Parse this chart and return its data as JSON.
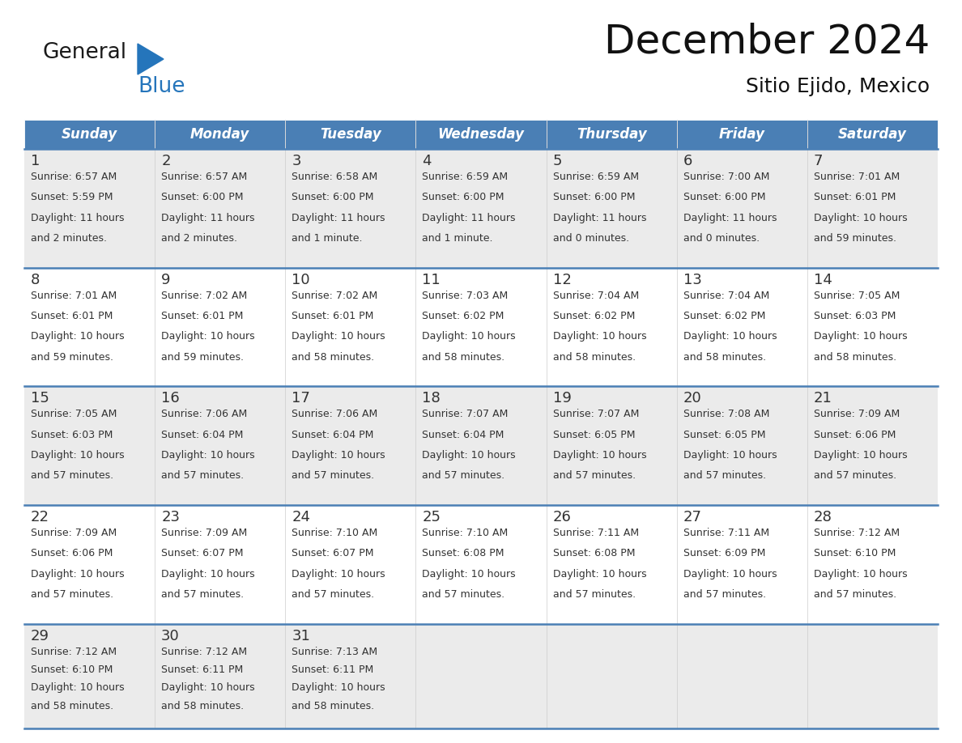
{
  "title": "December 2024",
  "subtitle": "Sitio Ejido, Mexico",
  "header_bg_color": "#4a7fb5",
  "header_text_color": "#ffffff",
  "row_bg_colors": [
    "#ebebeb",
    "#ffffff"
  ],
  "grid_line_color": "#4a7fb5",
  "text_color": "#333333",
  "day_headers": [
    "Sunday",
    "Monday",
    "Tuesday",
    "Wednesday",
    "Thursday",
    "Friday",
    "Saturday"
  ],
  "weeks": [
    [
      {
        "day": "1",
        "sunrise": "6:57 AM",
        "sunset": "5:59 PM",
        "daylight1": "11 hours",
        "daylight2": "and 2 minutes."
      },
      {
        "day": "2",
        "sunrise": "6:57 AM",
        "sunset": "6:00 PM",
        "daylight1": "11 hours",
        "daylight2": "and 2 minutes."
      },
      {
        "day": "3",
        "sunrise": "6:58 AM",
        "sunset": "6:00 PM",
        "daylight1": "11 hours",
        "daylight2": "and 1 minute."
      },
      {
        "day": "4",
        "sunrise": "6:59 AM",
        "sunset": "6:00 PM",
        "daylight1": "11 hours",
        "daylight2": "and 1 minute."
      },
      {
        "day": "5",
        "sunrise": "6:59 AM",
        "sunset": "6:00 PM",
        "daylight1": "11 hours",
        "daylight2": "and 0 minutes."
      },
      {
        "day": "6",
        "sunrise": "7:00 AM",
        "sunset": "6:00 PM",
        "daylight1": "11 hours",
        "daylight2": "and 0 minutes."
      },
      {
        "day": "7",
        "sunrise": "7:01 AM",
        "sunset": "6:01 PM",
        "daylight1": "10 hours",
        "daylight2": "and 59 minutes."
      }
    ],
    [
      {
        "day": "8",
        "sunrise": "7:01 AM",
        "sunset": "6:01 PM",
        "daylight1": "10 hours",
        "daylight2": "and 59 minutes."
      },
      {
        "day": "9",
        "sunrise": "7:02 AM",
        "sunset": "6:01 PM",
        "daylight1": "10 hours",
        "daylight2": "and 59 minutes."
      },
      {
        "day": "10",
        "sunrise": "7:02 AM",
        "sunset": "6:01 PM",
        "daylight1": "10 hours",
        "daylight2": "and 58 minutes."
      },
      {
        "day": "11",
        "sunrise": "7:03 AM",
        "sunset": "6:02 PM",
        "daylight1": "10 hours",
        "daylight2": "and 58 minutes."
      },
      {
        "day": "12",
        "sunrise": "7:04 AM",
        "sunset": "6:02 PM",
        "daylight1": "10 hours",
        "daylight2": "and 58 minutes."
      },
      {
        "day": "13",
        "sunrise": "7:04 AM",
        "sunset": "6:02 PM",
        "daylight1": "10 hours",
        "daylight2": "and 58 minutes."
      },
      {
        "day": "14",
        "sunrise": "7:05 AM",
        "sunset": "6:03 PM",
        "daylight1": "10 hours",
        "daylight2": "and 58 minutes."
      }
    ],
    [
      {
        "day": "15",
        "sunrise": "7:05 AM",
        "sunset": "6:03 PM",
        "daylight1": "10 hours",
        "daylight2": "and 57 minutes."
      },
      {
        "day": "16",
        "sunrise": "7:06 AM",
        "sunset": "6:04 PM",
        "daylight1": "10 hours",
        "daylight2": "and 57 minutes."
      },
      {
        "day": "17",
        "sunrise": "7:06 AM",
        "sunset": "6:04 PM",
        "daylight1": "10 hours",
        "daylight2": "and 57 minutes."
      },
      {
        "day": "18",
        "sunrise": "7:07 AM",
        "sunset": "6:04 PM",
        "daylight1": "10 hours",
        "daylight2": "and 57 minutes."
      },
      {
        "day": "19",
        "sunrise": "7:07 AM",
        "sunset": "6:05 PM",
        "daylight1": "10 hours",
        "daylight2": "and 57 minutes."
      },
      {
        "day": "20",
        "sunrise": "7:08 AM",
        "sunset": "6:05 PM",
        "daylight1": "10 hours",
        "daylight2": "and 57 minutes."
      },
      {
        "day": "21",
        "sunrise": "7:09 AM",
        "sunset": "6:06 PM",
        "daylight1": "10 hours",
        "daylight2": "and 57 minutes."
      }
    ],
    [
      {
        "day": "22",
        "sunrise": "7:09 AM",
        "sunset": "6:06 PM",
        "daylight1": "10 hours",
        "daylight2": "and 57 minutes."
      },
      {
        "day": "23",
        "sunrise": "7:09 AM",
        "sunset": "6:07 PM",
        "daylight1": "10 hours",
        "daylight2": "and 57 minutes."
      },
      {
        "day": "24",
        "sunrise": "7:10 AM",
        "sunset": "6:07 PM",
        "daylight1": "10 hours",
        "daylight2": "and 57 minutes."
      },
      {
        "day": "25",
        "sunrise": "7:10 AM",
        "sunset": "6:08 PM",
        "daylight1": "10 hours",
        "daylight2": "and 57 minutes."
      },
      {
        "day": "26",
        "sunrise": "7:11 AM",
        "sunset": "6:08 PM",
        "daylight1": "10 hours",
        "daylight2": "and 57 minutes."
      },
      {
        "day": "27",
        "sunrise": "7:11 AM",
        "sunset": "6:09 PM",
        "daylight1": "10 hours",
        "daylight2": "and 57 minutes."
      },
      {
        "day": "28",
        "sunrise": "7:12 AM",
        "sunset": "6:10 PM",
        "daylight1": "10 hours",
        "daylight2": "and 57 minutes."
      }
    ],
    [
      {
        "day": "29",
        "sunrise": "7:12 AM",
        "sunset": "6:10 PM",
        "daylight1": "10 hours",
        "daylight2": "and 58 minutes."
      },
      {
        "day": "30",
        "sunrise": "7:12 AM",
        "sunset": "6:11 PM",
        "daylight1": "10 hours",
        "daylight2": "and 58 minutes."
      },
      {
        "day": "31",
        "sunrise": "7:13 AM",
        "sunset": "6:11 PM",
        "daylight1": "10 hours",
        "daylight2": "and 58 minutes."
      },
      null,
      null,
      null,
      null
    ]
  ],
  "logo_black_color": "#1a1a1a",
  "logo_blue_color": "#2575bb",
  "title_fontsize": 36,
  "subtitle_fontsize": 18,
  "header_fontsize": 12,
  "day_num_fontsize": 13,
  "cell_fontsize": 9
}
